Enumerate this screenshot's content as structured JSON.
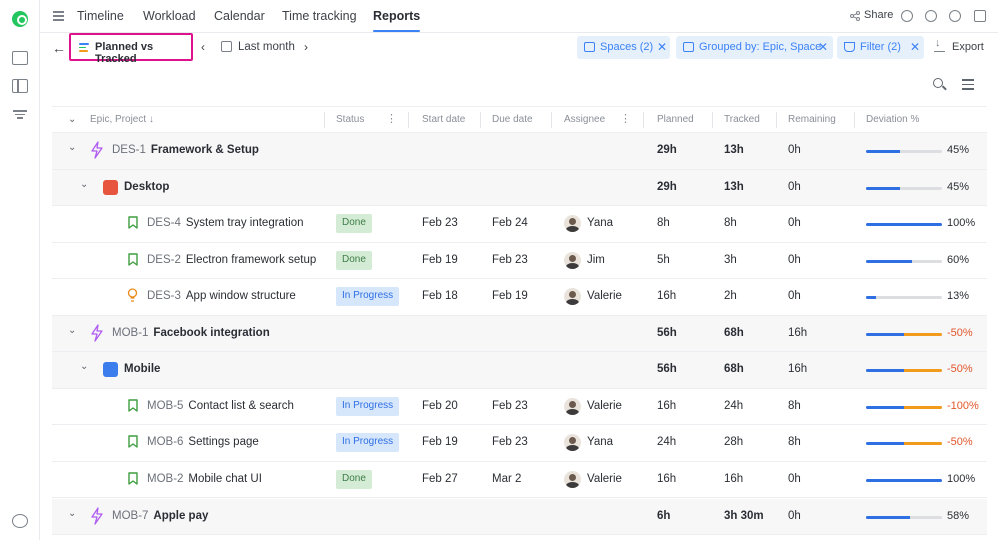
{
  "nav": {
    "tabs": [
      {
        "label": "Timeline",
        "active": false
      },
      {
        "label": "Workload",
        "active": false
      },
      {
        "label": "Calendar",
        "active": false
      },
      {
        "label": "Time tracking",
        "active": false
      },
      {
        "label": "Reports",
        "active": true
      }
    ],
    "share_label": "Share"
  },
  "toolbar": {
    "report_name": "Planned vs Tracked",
    "period": "Last month",
    "chips": [
      {
        "label": "Spaces (2)",
        "icon": "folder-icon"
      },
      {
        "label": "Grouped by: Epic, Space",
        "icon": "group-icon"
      },
      {
        "label": "Filter (2)",
        "icon": "filter-icon"
      }
    ],
    "export_label": "Export"
  },
  "colors": {
    "accent": "#3b82f6",
    "highlight": "#e0118d",
    "planned_bar": "#2f6fe4",
    "over_bar": "#f29a1c",
    "negative": "#e2562a",
    "done_bg": "#d4ecd6",
    "done_text": "#3f7d45",
    "progress_bg": "#d6e6fb",
    "progress_text": "#2f6fe4"
  },
  "table": {
    "columns": {
      "epic": "Epic, Project",
      "status": "Status",
      "start": "Start date",
      "due": "Due date",
      "assignee": "Assignee",
      "planned": "Planned",
      "tracked": "Tracked",
      "remaining": "Remaining",
      "deviation": "Deviation %"
    },
    "rows": [
      {
        "kind": "epic",
        "key": "DES-1",
        "name": "Framework & Setup",
        "planned": "29h",
        "tracked": "13h",
        "remaining": "0h",
        "deviation": "45%",
        "ratio": 0.45,
        "negative": false
      },
      {
        "kind": "project",
        "name": "Desktop",
        "project_icon": "desktop-app-icon",
        "planned": "29h",
        "tracked": "13h",
        "remaining": "0h",
        "deviation": "45%",
        "ratio": 0.45,
        "negative": false
      },
      {
        "kind": "task",
        "icon": "bookmark-icon",
        "key": "DES-4",
        "name": "System tray integration",
        "status": "Done",
        "start": "Feb 23",
        "due": "Feb 24",
        "assignee": "Yana",
        "planned": "8h",
        "tracked": "8h",
        "remaining": "0h",
        "deviation": "100%",
        "ratio": 1.0,
        "negative": false
      },
      {
        "kind": "task",
        "icon": "bookmark-icon",
        "key": "DES-2",
        "name": "Electron framework setup",
        "status": "Done",
        "start": "Feb 19",
        "due": "Feb 23",
        "assignee": "Jim",
        "planned": "5h",
        "tracked": "3h",
        "remaining": "0h",
        "deviation": "60%",
        "ratio": 0.6,
        "negative": false
      },
      {
        "kind": "task",
        "icon": "lightbulb-icon",
        "key": "DES-3",
        "name": "App window structure",
        "status": "In Progress",
        "start": "Feb 18",
        "due": "Feb 19",
        "assignee": "Valerie",
        "planned": "16h",
        "tracked": "2h",
        "remaining": "0h",
        "deviation": "13%",
        "ratio": 0.13,
        "negative": false
      },
      {
        "kind": "epic",
        "key": "MOB-1",
        "name": "Facebook integration",
        "planned": "56h",
        "tracked": "68h",
        "remaining": "16h",
        "deviation": "-50%",
        "ratio": 0.5,
        "negative": true
      },
      {
        "kind": "project",
        "name": "Mobile",
        "project_icon": "mobile-app-icon",
        "planned": "56h",
        "tracked": "68h",
        "remaining": "16h",
        "deviation": "-50%",
        "ratio": 0.5,
        "negative": true
      },
      {
        "kind": "task",
        "icon": "bookmark-icon",
        "key": "MOB-5",
        "name": "Contact list & search",
        "status": "In Progress",
        "start": "Feb 20",
        "due": "Feb 23",
        "assignee": "Valerie",
        "planned": "16h",
        "tracked": "24h",
        "remaining": "8h",
        "deviation": "-100%",
        "ratio": 0.5,
        "negative": true
      },
      {
        "kind": "task",
        "icon": "bookmark-icon",
        "key": "MOB-6",
        "name": "Settings page",
        "status": "In Progress",
        "start": "Feb 19",
        "due": "Feb 23",
        "assignee": "Yana",
        "planned": "24h",
        "tracked": "28h",
        "remaining": "8h",
        "deviation": "-50%",
        "ratio": 0.5,
        "negative": true
      },
      {
        "kind": "task",
        "icon": "bookmark-icon",
        "key": "MOB-2",
        "name": "Mobile chat UI",
        "status": "Done",
        "start": "Feb 27",
        "due": "Mar 2",
        "assignee": "Valerie",
        "planned": "16h",
        "tracked": "16h",
        "remaining": "0h",
        "deviation": "100%",
        "ratio": 1.0,
        "negative": false
      },
      {
        "kind": "epic",
        "key": "MOB-7",
        "name": "Apple pay",
        "planned": "6h",
        "tracked": "3h 30m",
        "remaining": "0h",
        "deviation": "58%",
        "ratio": 0.58,
        "negative": false
      }
    ]
  }
}
